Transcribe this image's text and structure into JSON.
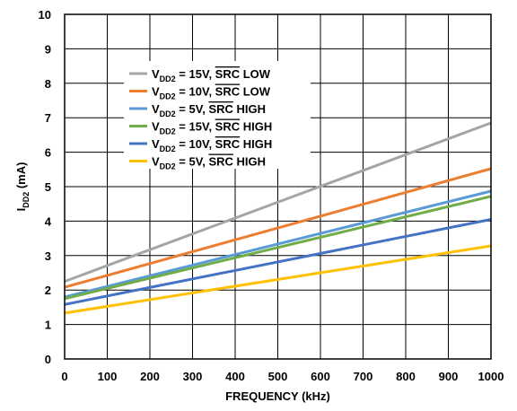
{
  "chart_data": {
    "type": "line",
    "xlabel": "FREQUENCY (kHz)",
    "ylabel_main": "I",
    "ylabel_sub": "DD2",
    "ylabel_unit": " (mA)",
    "xlim": [
      0,
      1000
    ],
    "ylim": [
      0,
      10
    ],
    "xticks": [
      0,
      100,
      200,
      300,
      400,
      500,
      600,
      700,
      800,
      900,
      1000
    ],
    "yticks": [
      0,
      1,
      2,
      3,
      4,
      5,
      6,
      7,
      8,
      9,
      10
    ],
    "grid": true,
    "legend_position": "top-left",
    "series": [
      {
        "name": "V_DD2 = 15V, SRC LOW",
        "v_main": "V",
        "v_sub": "DD2",
        "prefix": " = 15V, ",
        "bar": "SRC",
        "suffix": " LOW",
        "color": "#a5a5a5",
        "x": [
          0,
          1000
        ],
        "y": [
          2.25,
          6.85
        ]
      },
      {
        "name": "V_DD2 = 10V, SRC LOW",
        "v_main": "V",
        "v_sub": "DD2",
        "prefix": " = 10V, ",
        "bar": "SRC",
        "suffix": " LOW",
        "color": "#ed7d31",
        "x": [
          0,
          1000
        ],
        "y": [
          2.08,
          5.52
        ]
      },
      {
        "name": "V_DD2 = 5V, SRC HIGH",
        "v_main": "V",
        "v_sub": "DD2",
        "prefix": " = 5V, ",
        "bar": "SRC",
        "suffix": " HIGH",
        "color": "#5b9bd5",
        "x": [
          0,
          1000
        ],
        "y": [
          1.8,
          4.87
        ]
      },
      {
        "name": "V_DD2 = 15V, SRC HIGH",
        "v_main": "V",
        "v_sub": "DD2",
        "prefix": " = 15V, ",
        "bar": "SRC",
        "suffix": " HIGH",
        "color": "#70ad47",
        "x": [
          0,
          1000
        ],
        "y": [
          1.75,
          4.72
        ]
      },
      {
        "name": "V_DD2 = 10V, SRC HIGH",
        "v_main": "V",
        "v_sub": "DD2",
        "prefix": " = 10V, ",
        "bar": "SRC",
        "suffix": " HIGH",
        "color": "#4472c4",
        "x": [
          0,
          1000
        ],
        "y": [
          1.58,
          4.05
        ]
      },
      {
        "name": "V_DD2 = 5V, SRC HIGH",
        "v_main": "V",
        "v_sub": "DD2",
        "prefix": " = 5V, ",
        "bar": "SRC",
        "suffix": " HIGH",
        "color": "#ffc000",
        "x": [
          0,
          1000
        ],
        "y": [
          1.33,
          3.28
        ]
      }
    ]
  }
}
